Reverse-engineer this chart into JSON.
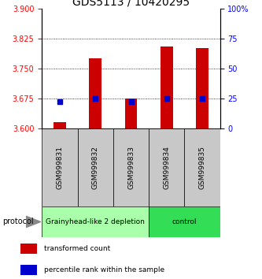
{
  "title": "GDS5113 / 10420295",
  "samples": [
    "GSM999831",
    "GSM999832",
    "GSM999833",
    "GSM999834",
    "GSM999835"
  ],
  "bar_values": [
    3.615,
    3.775,
    3.675,
    3.805,
    3.8
  ],
  "percentile_values": [
    22,
    25,
    22,
    25,
    25
  ],
  "ylim_left": [
    3.6,
    3.9
  ],
  "ylim_right": [
    0,
    100
  ],
  "left_ticks": [
    3.6,
    3.675,
    3.75,
    3.825,
    3.9
  ],
  "right_ticks": [
    0,
    25,
    50,
    75,
    100
  ],
  "right_tick_labels": [
    "0",
    "25",
    "50",
    "75",
    "100%"
  ],
  "dotted_lines": [
    3.675,
    3.75,
    3.825
  ],
  "bar_color": "#cc0000",
  "dot_color": "#0000cc",
  "bar_width": 0.35,
  "groups": [
    {
      "label": "Grainyhead-like 2 depletion",
      "samples": [
        0,
        1,
        2
      ],
      "color": "#aaffaa"
    },
    {
      "label": "control",
      "samples": [
        3,
        4
      ],
      "color": "#33dd55"
    }
  ],
  "group_label_fontsize": 6.5,
  "protocol_label": "protocol",
  "legend_items": [
    {
      "color": "#cc0000",
      "label": "transformed count"
    },
    {
      "color": "#0000cc",
      "label": "percentile rank within the sample"
    }
  ],
  "title_fontsize": 10,
  "tick_fontsize": 7,
  "sample_fontsize": 6.5,
  "background_color": "#ffffff",
  "sample_bg_color": "#c8c8c8"
}
